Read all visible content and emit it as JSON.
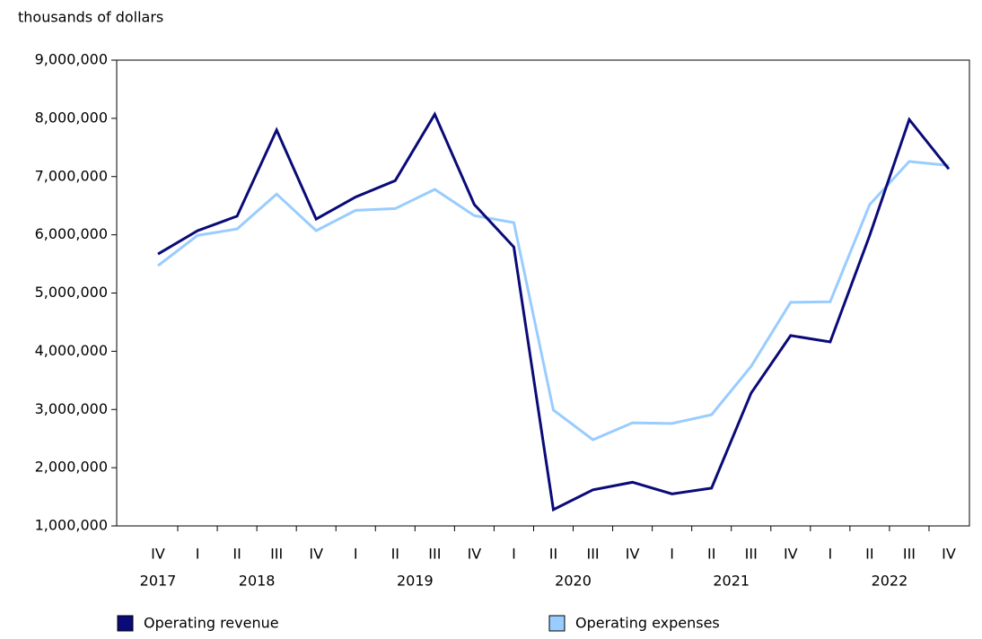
{
  "chart_data": {
    "type": "line",
    "y_label": "thousands of dollars",
    "categories": [
      "IV",
      "I",
      "II",
      "III",
      "IV",
      "I",
      "II",
      "III",
      "IV",
      "I",
      "II",
      "III",
      "IV",
      "I",
      "II",
      "III",
      "IV",
      "I",
      "II",
      "III",
      "IV"
    ],
    "years": [
      "2017",
      "2018",
      "2018",
      "2018",
      "2018",
      "2019",
      "2019",
      "2019",
      "2019",
      "2020",
      "2020",
      "2020",
      "2020",
      "2021",
      "2021",
      "2021",
      "2021",
      "2022",
      "2022",
      "2022",
      "2022"
    ],
    "series": [
      {
        "name": "Operating revenue",
        "color": "#0a0a78",
        "values": [
          5670000,
          6070000,
          6320000,
          7800000,
          6270000,
          6650000,
          6930000,
          8070000,
          6520000,
          5790000,
          1280000,
          1620000,
          1750000,
          1550000,
          1650000,
          3280000,
          4270000,
          4160000,
          5990000,
          7980000,
          7130000
        ]
      },
      {
        "name": "Operating expenses",
        "color": "#99ccff",
        "values": [
          5470000,
          5990000,
          6100000,
          6700000,
          6070000,
          6420000,
          6450000,
          6780000,
          6330000,
          6210000,
          2990000,
          2480000,
          2770000,
          2760000,
          2910000,
          3740000,
          4840000,
          4850000,
          6520000,
          7260000,
          7190000
        ]
      }
    ],
    "ylim": [
      1000000,
      9000000
    ],
    "yticks": [
      {
        "value": 1000000,
        "label": "1,000,000"
      },
      {
        "value": 2000000,
        "label": "2,000,000"
      },
      {
        "value": 3000000,
        "label": "3,000,000"
      },
      {
        "value": 4000000,
        "label": "4,000,000"
      },
      {
        "value": 5000000,
        "label": "5,000,000"
      },
      {
        "value": 6000000,
        "label": "6,000,000"
      },
      {
        "value": 7000000,
        "label": "7,000,000"
      },
      {
        "value": 8000000,
        "label": "8,000,000"
      },
      {
        "value": 9000000,
        "label": "9,000,000"
      }
    ],
    "grid": false
  }
}
